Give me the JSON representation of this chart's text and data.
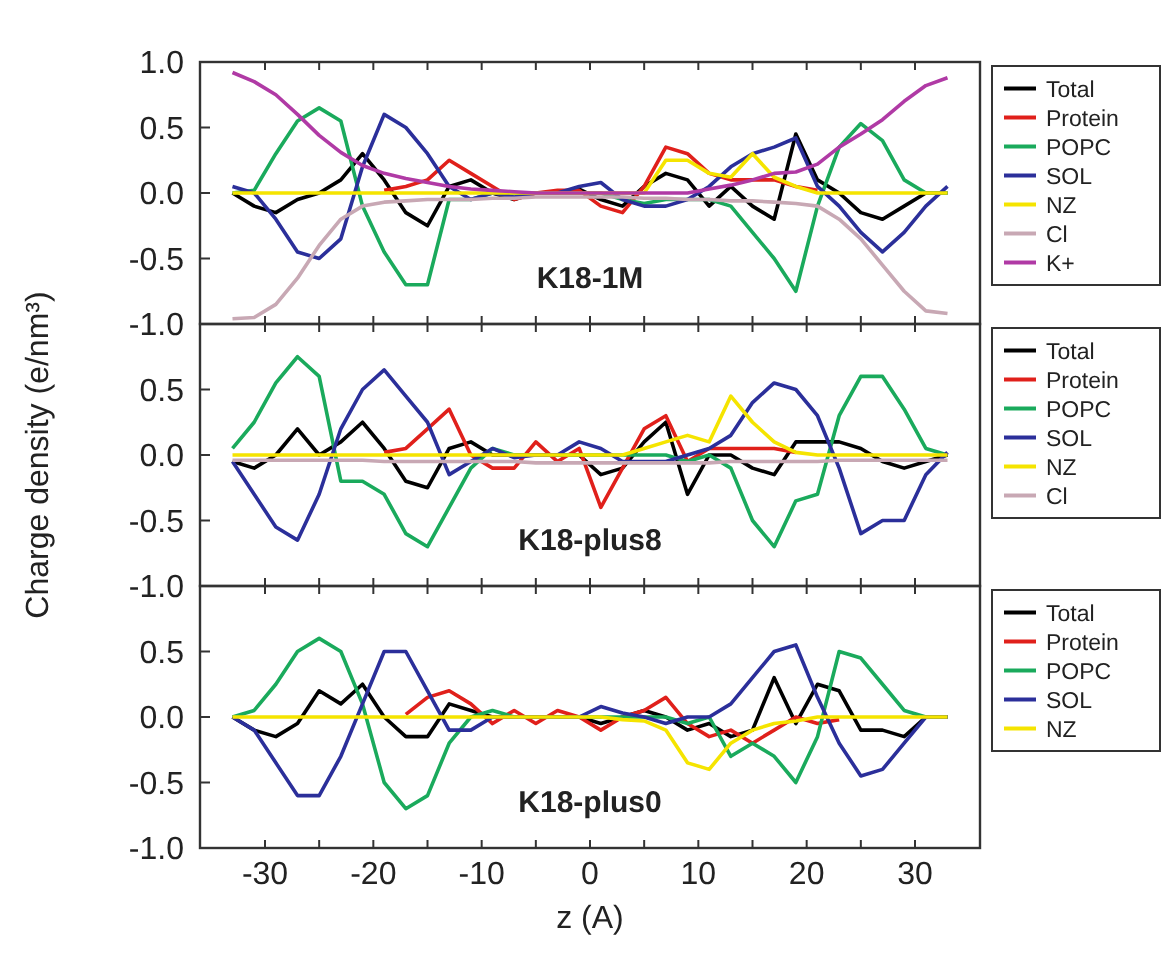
{
  "chart_data": [
    {
      "type": "line",
      "annotations": [
        "K18-1M"
      ],
      "legend": "right",
      "tick_labels": "y",
      "xlim": [
        -36,
        36
      ],
      "ylim": [
        -1,
        1
      ],
      "xticks": [
        {
          "value": -30,
          "label": null
        },
        {
          "value": -25,
          "label": null
        },
        {
          "value": -20,
          "label": null
        },
        {
          "value": -15,
          "label": null
        },
        {
          "value": -10,
          "label": null
        },
        {
          "value": -5,
          "label": null
        },
        {
          "value": 0,
          "label": null
        },
        {
          "value": 5,
          "label": null
        },
        {
          "value": 10,
          "label": null
        },
        {
          "value": 15,
          "label": null
        },
        {
          "value": 20,
          "label": null
        },
        {
          "value": 25,
          "label": null
        },
        {
          "value": 30,
          "label": null
        }
      ],
      "yticks": [
        {
          "value": -1,
          "label": "-1.0"
        },
        {
          "value": -0.5,
          "label": "-0.5"
        },
        {
          "value": 0,
          "label": "0.0"
        },
        {
          "value": 0.5,
          "label": "0.5"
        },
        {
          "value": 1,
          "label": "1.0"
        }
      ],
      "x": [
        -33,
        -31,
        -29,
        -27,
        -25,
        -23,
        -21,
        -19,
        -17,
        -15,
        -13,
        -11,
        -9,
        -7,
        -5,
        -3,
        -1,
        1,
        3,
        5,
        7,
        9,
        11,
        13,
        15,
        17,
        19,
        21,
        23,
        25,
        27,
        29,
        31,
        33
      ],
      "series": [
        {
          "name": "Total",
          "color": "#000000",
          "values": [
            0,
            -0.1,
            -0.15,
            -0.05,
            0,
            0.1,
            0.3,
            0.1,
            -0.15,
            -0.25,
            0.05,
            0.1,
            0,
            -0.05,
            0,
            0,
            0.03,
            -0.05,
            -0.1,
            0.05,
            0.15,
            0.1,
            -0.1,
            0.05,
            -0.1,
            -0.2,
            0.45,
            0.1,
            0,
            -0.15,
            -0.2,
            -0.1,
            0,
            0
          ]
        },
        {
          "name": "Protein",
          "color": "#e0201b",
          "values": [
            null,
            null,
            null,
            null,
            null,
            null,
            null,
            0.02,
            0.05,
            0.1,
            0.25,
            0.15,
            0.05,
            -0.05,
            0,
            0.02,
            0.02,
            -0.1,
            -0.15,
            0.05,
            0.35,
            0.3,
            0.15,
            0.1,
            0.1,
            0.1,
            0.05,
            0.02,
            null,
            null,
            null,
            null,
            null,
            null
          ]
        },
        {
          "name": "POPC",
          "color": "#1aaa5c",
          "values": [
            0,
            0.02,
            0.3,
            0.55,
            0.65,
            0.55,
            -0.1,
            -0.45,
            -0.7,
            -0.7,
            -0.05,
            -0.05,
            0,
            0,
            0,
            0,
            0,
            0,
            -0.05,
            -0.08,
            -0.05,
            -0.05,
            -0.05,
            -0.1,
            -0.3,
            -0.5,
            -0.75,
            -0.1,
            0.35,
            0.53,
            0.4,
            0.1,
            0,
            0
          ]
        },
        {
          "name": "SOL",
          "color": "#2b2f9a",
          "values": [
            0.05,
            0,
            -0.2,
            -0.45,
            -0.5,
            -0.35,
            0.2,
            0.6,
            0.5,
            0.3,
            0.05,
            -0.05,
            0,
            -0.03,
            0,
            0,
            0.05,
            0.08,
            -0.05,
            -0.1,
            -0.1,
            -0.05,
            0.05,
            0.2,
            0.3,
            0.35,
            0.42,
            0.05,
            -0.1,
            -0.3,
            -0.45,
            -0.3,
            -0.1,
            0.05
          ]
        },
        {
          "name": "NZ",
          "color": "#f5e400",
          "values": [
            0,
            0,
            0,
            0,
            0,
            0,
            0,
            0,
            0,
            0,
            0,
            0,
            0,
            0,
            0,
            0,
            0,
            0,
            0,
            0,
            0.25,
            0.25,
            0.15,
            0.12,
            0.3,
            0.12,
            0.05,
            0,
            0,
            0,
            0,
            0,
            0,
            0
          ]
        },
        {
          "name": "Cl",
          "color": "#c8a8b4",
          "values": [
            -0.96,
            -0.95,
            -0.85,
            -0.65,
            -0.4,
            -0.2,
            -0.1,
            -0.07,
            -0.06,
            -0.05,
            -0.05,
            -0.05,
            -0.04,
            -0.04,
            -0.03,
            -0.03,
            -0.03,
            -0.03,
            -0.03,
            -0.04,
            -0.04,
            -0.05,
            -0.05,
            -0.06,
            -0.06,
            -0.07,
            -0.08,
            -0.1,
            -0.2,
            -0.35,
            -0.55,
            -0.75,
            -0.9,
            -0.92
          ]
        },
        {
          "name": "K+",
          "color": "#b03aa5",
          "values": [
            0.92,
            0.85,
            0.75,
            0.6,
            0.44,
            0.31,
            0.21,
            0.15,
            0.11,
            0.08,
            0.05,
            0.03,
            0.02,
            0.01,
            0,
            0,
            0,
            0,
            0,
            0,
            0,
            0,
            0.03,
            0.06,
            0.1,
            0.15,
            0.16,
            0.22,
            0.35,
            0.45,
            0.56,
            0.7,
            0.82,
            0.88
          ]
        }
      ]
    },
    {
      "type": "line",
      "annotations": [
        "K18-plus8"
      ],
      "ylabel": "Charge density (e/nm³)",
      "legend": "right",
      "tick_labels": "y",
      "xlim": [
        -36,
        36
      ],
      "ylim": [
        -1,
        1
      ],
      "xticks": [
        {
          "value": -30,
          "label": null
        },
        {
          "value": -25,
          "label": null
        },
        {
          "value": -20,
          "label": null
        },
        {
          "value": -15,
          "label": null
        },
        {
          "value": -10,
          "label": null
        },
        {
          "value": -5,
          "label": null
        },
        {
          "value": 0,
          "label": null
        },
        {
          "value": 5,
          "label": null
        },
        {
          "value": 10,
          "label": null
        },
        {
          "value": 15,
          "label": null
        },
        {
          "value": 20,
          "label": null
        },
        {
          "value": 25,
          "label": null
        },
        {
          "value": 30,
          "label": null
        }
      ],
      "yticks": [
        {
          "value": -1,
          "label": "-1.0"
        },
        {
          "value": -0.5,
          "label": "-0.5"
        },
        {
          "value": 0,
          "label": "0.0"
        },
        {
          "value": 0.5,
          "label": "0.5"
        },
        {
          "value": 1,
          "label": null
        }
      ],
      "x": [
        -33,
        -31,
        -29,
        -27,
        -25,
        -23,
        -21,
        -19,
        -17,
        -15,
        -13,
        -11,
        -9,
        -7,
        -5,
        -3,
        -1,
        1,
        3,
        5,
        7,
        9,
        11,
        13,
        15,
        17,
        19,
        21,
        23,
        25,
        27,
        29,
        31,
        33
      ],
      "series": [
        {
          "name": "Total",
          "color": "#000000",
          "values": [
            -0.05,
            -0.1,
            0,
            0.2,
            0,
            0.1,
            0.25,
            0.05,
            -0.2,
            -0.25,
            0.05,
            0.1,
            0,
            0,
            0,
            0,
            0,
            -0.15,
            -0.1,
            0.1,
            0.25,
            -0.3,
            0,
            0,
            -0.1,
            -0.15,
            0.1,
            0.1,
            0.1,
            0.05,
            -0.05,
            -0.1,
            -0.05,
            0
          ]
        },
        {
          "name": "Protein",
          "color": "#e0201b",
          "values": [
            null,
            null,
            null,
            null,
            null,
            null,
            null,
            0.02,
            0.05,
            0.2,
            0.35,
            0,
            -0.1,
            -0.1,
            0.1,
            -0.05,
            0.05,
            -0.4,
            -0.1,
            0.2,
            0.3,
            -0.05,
            0.05,
            0.05,
            0.05,
            0.05,
            0.02,
            null,
            null,
            null,
            null,
            null,
            null,
            null
          ]
        },
        {
          "name": "POPC",
          "color": "#1aaa5c",
          "values": [
            0.05,
            0.25,
            0.55,
            0.75,
            0.6,
            -0.2,
            -0.2,
            -0.3,
            -0.6,
            -0.7,
            -0.4,
            -0.1,
            0.05,
            0,
            0,
            0,
            0,
            0,
            0,
            0,
            0,
            -0.05,
            0,
            -0.1,
            -0.5,
            -0.7,
            -0.35,
            -0.3,
            0.3,
            0.6,
            0.6,
            0.35,
            0.05,
            0
          ]
        },
        {
          "name": "SOL",
          "color": "#2b2f9a",
          "values": [
            -0.05,
            -0.3,
            -0.55,
            -0.65,
            -0.3,
            0.2,
            0.5,
            0.65,
            0.45,
            0.25,
            -0.15,
            -0.05,
            0.05,
            -0.02,
            0,
            0,
            0.1,
            0.05,
            -0.05,
            -0.05,
            -0.05,
            0,
            0.05,
            0.15,
            0.4,
            0.55,
            0.5,
            0.3,
            -0.1,
            -0.6,
            -0.5,
            -0.5,
            -0.15,
            0.02
          ]
        },
        {
          "name": "NZ",
          "color": "#f5e400",
          "values": [
            0,
            0,
            0,
            0,
            0,
            0,
            0,
            0,
            0,
            0,
            0,
            0,
            0,
            0,
            0,
            0,
            0,
            0,
            0,
            0.05,
            0.1,
            0.15,
            0.1,
            0.45,
            0.25,
            0.1,
            0.02,
            0,
            0,
            0,
            0,
            0,
            0,
            0
          ]
        },
        {
          "name": "Cl",
          "color": "#c8a8b4",
          "values": [
            -0.04,
            -0.04,
            -0.04,
            -0.04,
            -0.04,
            -0.04,
            -0.04,
            -0.05,
            -0.05,
            -0.05,
            -0.05,
            -0.05,
            -0.05,
            -0.05,
            -0.06,
            -0.06,
            -0.06,
            -0.06,
            -0.06,
            -0.06,
            -0.06,
            -0.06,
            -0.06,
            -0.05,
            -0.05,
            -0.05,
            -0.05,
            -0.05,
            -0.04,
            -0.04,
            -0.04,
            -0.04,
            -0.04,
            -0.04
          ]
        }
      ]
    },
    {
      "type": "line",
      "annotations": [
        "K18-plus0"
      ],
      "xlabel": "z (A)",
      "legend": "right",
      "xlim": [
        -36,
        36
      ],
      "ylim": [
        -1,
        1
      ],
      "xticks": [
        {
          "value": -30,
          "label": "-30"
        },
        {
          "value": -25,
          "label": null
        },
        {
          "value": -20,
          "label": "-20"
        },
        {
          "value": -15,
          "label": null
        },
        {
          "value": -10,
          "label": "-10"
        },
        {
          "value": -5,
          "label": null
        },
        {
          "value": 0,
          "label": "0"
        },
        {
          "value": 5,
          "label": null
        },
        {
          "value": 10,
          "label": "10"
        },
        {
          "value": 15,
          "label": null
        },
        {
          "value": 20,
          "label": "20"
        },
        {
          "value": 25,
          "label": null
        },
        {
          "value": 30,
          "label": "30"
        }
      ],
      "yticks": [
        {
          "value": -1,
          "label": "-1.0"
        },
        {
          "value": -0.5,
          "label": "-0.5"
        },
        {
          "value": 0,
          "label": "0.0"
        },
        {
          "value": 0.5,
          "label": "0.5"
        },
        {
          "value": 1,
          "label": null
        }
      ],
      "x": [
        -33,
        -31,
        -29,
        -27,
        -25,
        -23,
        -21,
        -19,
        -17,
        -15,
        -13,
        -11,
        -9,
        -7,
        -5,
        -3,
        -1,
        1,
        3,
        5,
        7,
        9,
        11,
        13,
        15,
        17,
        19,
        21,
        23,
        25,
        27,
        29,
        31,
        33
      ],
      "series": [
        {
          "name": "Total",
          "color": "#000000",
          "values": [
            0,
            -0.1,
            -0.15,
            -0.05,
            0.2,
            0.1,
            0.25,
            0,
            -0.15,
            -0.15,
            0.1,
            0.05,
            0,
            0,
            0,
            0,
            0,
            -0.05,
            0,
            0.05,
            0,
            -0.1,
            -0.05,
            -0.15,
            -0.1,
            0.3,
            -0.05,
            0.25,
            0.2,
            -0.1,
            -0.1,
            -0.15,
            0,
            0
          ]
        },
        {
          "name": "Protein",
          "color": "#e0201b",
          "values": [
            null,
            null,
            null,
            null,
            null,
            null,
            null,
            null,
            0.02,
            0.15,
            0.2,
            0.1,
            -0.05,
            0.05,
            -0.05,
            0.05,
            0,
            -0.1,
            0,
            0.05,
            0.15,
            -0.05,
            -0.15,
            -0.1,
            -0.2,
            -0.1,
            0,
            -0.05,
            -0.02,
            null,
            null,
            null,
            null,
            null
          ]
        },
        {
          "name": "POPC",
          "color": "#1aaa5c",
          "values": [
            0,
            0.05,
            0.25,
            0.5,
            0.6,
            0.5,
            0.1,
            -0.5,
            -0.7,
            -0.6,
            -0.2,
            0,
            0.05,
            0,
            0,
            0,
            0,
            0,
            0,
            0,
            0,
            -0.05,
            0,
            -0.3,
            -0.2,
            -0.3,
            -0.5,
            -0.15,
            0.5,
            0.45,
            0.25,
            0.05,
            0,
            0
          ]
        },
        {
          "name": "SOL",
          "color": "#2b2f9a",
          "values": [
            0,
            -0.1,
            -0.35,
            -0.6,
            -0.6,
            -0.3,
            0.1,
            0.5,
            0.5,
            0.2,
            -0.1,
            -0.1,
            0,
            0,
            0,
            0,
            0,
            0.08,
            0.03,
            0,
            -0.05,
            0,
            0,
            0.1,
            0.3,
            0.5,
            0.55,
            0.15,
            -0.2,
            -0.45,
            -0.4,
            -0.2,
            0,
            0
          ]
        },
        {
          "name": "NZ",
          "color": "#f5e400",
          "values": [
            0,
            0,
            0,
            0,
            0,
            0,
            0,
            0,
            0,
            0,
            0,
            0,
            0,
            0,
            0,
            0,
            0,
            0,
            -0.02,
            -0.03,
            -0.1,
            -0.35,
            -0.4,
            -0.2,
            -0.1,
            -0.05,
            -0.03,
            0,
            0,
            0,
            0,
            0,
            0,
            0
          ]
        }
      ]
    }
  ]
}
